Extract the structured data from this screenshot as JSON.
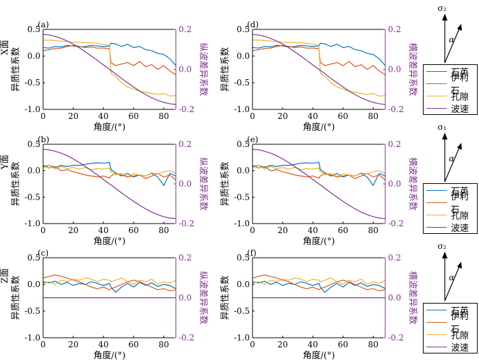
{
  "colors": {
    "quartz": "#0072bd",
    "illite": "#d95319",
    "pore": "#edb120",
    "velocity": "#7e2f8e",
    "axis": "#000000",
    "right_axis": "#7e2f8e"
  },
  "legend": {
    "items": [
      "石英",
      "伊利石",
      "孔隙",
      "波速"
    ]
  },
  "stress_labels": {
    "row1": "σ₂",
    "row2": "σ₁",
    "row3": "σ₂",
    "angle": "α"
  },
  "chart_data": [
    {
      "id": "a",
      "type": "line",
      "panel_label": "(a)",
      "title": "",
      "face_label": "X面",
      "ylabel": "异质性系数",
      "ylabel_right": "纵波差异系数",
      "xlabel": "角度/(°)",
      "xlim": [
        0,
        88
      ],
      "xticks": [
        0,
        20,
        40,
        60,
        80
      ],
      "ylim": [
        -1,
        0.5
      ],
      "yticks": [
        "-1.0",
        "-0.5",
        "0.0",
        "0.5"
      ],
      "ylim_right": [
        -0.2,
        0.2
      ],
      "yticks_right": [
        "-0.2",
        "0.0",
        "0.2"
      ],
      "x": [
        0,
        4,
        8,
        12,
        16,
        20,
        24,
        28,
        32,
        36,
        40,
        44,
        45,
        48,
        52,
        56,
        60,
        64,
        68,
        72,
        76,
        80,
        84,
        88
      ],
      "series": [
        {
          "name": "石英",
          "axis": "left",
          "values": [
            0.16,
            0.15,
            0.18,
            0.17,
            0.2,
            0.19,
            0.17,
            0.18,
            0.2,
            0.19,
            0.18,
            0.19,
            0.24,
            0.23,
            0.18,
            0.22,
            0.16,
            0.18,
            0.12,
            0.1,
            0.05,
            0.03,
            -0.05,
            -0.18
          ]
        },
        {
          "name": "伊利石",
          "axis": "left",
          "values": [
            0.1,
            0.12,
            0.14,
            0.15,
            0.18,
            0.2,
            0.18,
            0.16,
            0.17,
            0.15,
            0.15,
            0.14,
            -0.12,
            -0.18,
            -0.15,
            -0.12,
            -0.18,
            -0.1,
            -0.2,
            -0.16,
            -0.25,
            -0.18,
            -0.28,
            -0.35
          ]
        },
        {
          "name": "孔隙",
          "axis": "left",
          "values": [
            0.3,
            0.3,
            0.29,
            0.28,
            0.27,
            0.26,
            0.26,
            0.25,
            0.25,
            0.24,
            0.22,
            0.2,
            -0.32,
            -0.38,
            -0.5,
            -0.58,
            -0.62,
            -0.66,
            -0.68,
            -0.7,
            -0.72,
            -0.7,
            -0.75,
            -0.74
          ]
        },
        {
          "name": "波速",
          "axis": "right",
          "values": [
            0.175,
            0.172,
            0.165,
            0.155,
            0.142,
            0.126,
            0.108,
            0.088,
            0.067,
            0.045,
            0.022,
            0.0,
            -0.005,
            -0.022,
            -0.045,
            -0.067,
            -0.088,
            -0.108,
            -0.126,
            -0.142,
            -0.155,
            -0.165,
            -0.172,
            -0.175
          ]
        }
      ]
    },
    {
      "id": "d",
      "type": "line",
      "panel_label": "(d)",
      "title": "",
      "face_label": "",
      "ylabel": "异质性系数",
      "ylabel_right": "横波差异系数",
      "xlabel": "角度/(°)",
      "xlim": [
        0,
        88
      ],
      "xticks": [
        0,
        20,
        40,
        60,
        80
      ],
      "ylim": [
        -1,
        0.5
      ],
      "yticks": [
        "-1.0",
        "-0.5",
        "0.0",
        "0.5"
      ],
      "ylim_right": [
        -0.2,
        0.2
      ],
      "yticks_right": [
        "-0.2",
        "0.0",
        "0.2"
      ],
      "x": [
        0,
        4,
        8,
        12,
        16,
        20,
        24,
        28,
        32,
        36,
        40,
        44,
        45,
        48,
        52,
        56,
        60,
        64,
        68,
        72,
        76,
        80,
        84,
        88
      ],
      "series": [
        {
          "name": "石英",
          "axis": "left",
          "values": [
            0.16,
            0.15,
            0.18,
            0.17,
            0.2,
            0.19,
            0.17,
            0.18,
            0.2,
            0.19,
            0.18,
            0.19,
            0.24,
            0.23,
            0.18,
            0.22,
            0.16,
            0.18,
            0.12,
            0.1,
            0.05,
            0.03,
            -0.05,
            -0.18
          ]
        },
        {
          "name": "伊利石",
          "axis": "left",
          "values": [
            0.1,
            0.12,
            0.14,
            0.15,
            0.18,
            0.2,
            0.18,
            0.16,
            0.17,
            0.15,
            0.15,
            0.14,
            -0.12,
            -0.18,
            -0.15,
            -0.12,
            -0.18,
            -0.1,
            -0.2,
            -0.16,
            -0.25,
            -0.18,
            -0.28,
            -0.35
          ]
        },
        {
          "name": "孔隙",
          "axis": "left",
          "values": [
            0.3,
            0.3,
            0.29,
            0.28,
            0.27,
            0.26,
            0.26,
            0.25,
            0.25,
            0.24,
            0.22,
            0.2,
            -0.32,
            -0.38,
            -0.5,
            -0.58,
            -0.62,
            -0.66,
            -0.68,
            -0.7,
            -0.72,
            -0.7,
            -0.75,
            -0.74
          ]
        },
        {
          "name": "波速",
          "axis": "right",
          "values": [
            0.175,
            0.172,
            0.165,
            0.155,
            0.142,
            0.126,
            0.108,
            0.088,
            0.067,
            0.045,
            0.022,
            0.0,
            -0.005,
            -0.022,
            -0.045,
            -0.067,
            -0.088,
            -0.108,
            -0.126,
            -0.142,
            -0.155,
            -0.165,
            -0.172,
            -0.175
          ]
        }
      ]
    },
    {
      "id": "b",
      "type": "line",
      "panel_label": "(b)",
      "title": "",
      "face_label": "Y面",
      "ylabel": "异质性系数",
      "ylabel_right": "纵波差异系数",
      "xlabel": "角度/(°)",
      "xlim": [
        0,
        88
      ],
      "xticks": [
        0,
        20,
        40,
        60,
        80
      ],
      "ylim": [
        -1,
        0.5
      ],
      "yticks": [
        "-1.0",
        "-0.5",
        "0.0",
        "0.5"
      ],
      "ylim_right": [
        -0.2,
        0.2
      ],
      "yticks_right": [
        "-0.2",
        "0.0",
        "0.2"
      ],
      "x": [
        0,
        4,
        8,
        12,
        16,
        20,
        24,
        28,
        32,
        36,
        40,
        44,
        45,
        48,
        52,
        56,
        60,
        64,
        68,
        72,
        76,
        80,
        84,
        88
      ],
      "series": [
        {
          "name": "石英",
          "axis": "left",
          "values": [
            0.08,
            0.1,
            0.06,
            0.1,
            0.08,
            0.1,
            0.1,
            0.12,
            0.14,
            0.15,
            0.14,
            0.16,
            0.02,
            -0.04,
            -0.1,
            -0.05,
            -0.12,
            -0.08,
            -0.1,
            -0.05,
            -0.12,
            -0.28,
            -0.05,
            -0.1
          ]
        },
        {
          "name": "伊利石",
          "axis": "left",
          "values": [
            0.1,
            0.05,
            0.08,
            0.0,
            0.02,
            -0.02,
            -0.05,
            -0.08,
            -0.1,
            -0.12,
            -0.1,
            -0.14,
            -0.1,
            -0.05,
            -0.08,
            -0.12,
            -0.1,
            -0.08,
            -0.15,
            -0.1,
            -0.05,
            -0.12,
            -0.08,
            -0.18
          ]
        },
        {
          "name": "孔隙",
          "axis": "left",
          "values": [
            0.05,
            0.1,
            0.03,
            0.08,
            0.04,
            0.06,
            0.03,
            0.06,
            0.02,
            0.04,
            0.03,
            0.05,
            -0.02,
            -0.08,
            -0.05,
            -0.1,
            -0.06,
            -0.08,
            -0.1,
            -0.04,
            -0.06,
            -0.02,
            0.0,
            -0.05
          ]
        },
        {
          "name": "波速",
          "axis": "right",
          "values": [
            0.175,
            0.172,
            0.165,
            0.155,
            0.142,
            0.126,
            0.108,
            0.088,
            0.067,
            0.045,
            0.022,
            0.0,
            -0.005,
            -0.022,
            -0.045,
            -0.067,
            -0.088,
            -0.108,
            -0.126,
            -0.142,
            -0.155,
            -0.165,
            -0.172,
            -0.175
          ]
        }
      ]
    },
    {
      "id": "e",
      "type": "line",
      "panel_label": "(e)",
      "title": "",
      "face_label": "",
      "ylabel": "异质性系数",
      "ylabel_right": "横波差异系数",
      "xlabel": "角度/(°)",
      "xlim": [
        0,
        88
      ],
      "xticks": [
        0,
        20,
        40,
        60,
        80
      ],
      "ylim": [
        -1,
        0.5
      ],
      "yticks": [
        "-1.0",
        "-0.5",
        "0.0",
        "0.5"
      ],
      "ylim_right": [
        -0.2,
        0.2
      ],
      "yticks_right": [
        "-0.2",
        "0.0",
        "0.2"
      ],
      "x": [
        0,
        4,
        8,
        12,
        16,
        20,
        24,
        28,
        32,
        36,
        40,
        44,
        45,
        48,
        52,
        56,
        60,
        64,
        68,
        72,
        76,
        80,
        84,
        88
      ],
      "series": [
        {
          "name": "石英",
          "axis": "left",
          "values": [
            0.08,
            0.1,
            0.06,
            0.1,
            0.08,
            0.1,
            0.1,
            0.12,
            0.14,
            0.15,
            0.14,
            0.16,
            0.02,
            -0.04,
            -0.1,
            -0.05,
            -0.12,
            -0.08,
            -0.1,
            -0.05,
            -0.12,
            -0.28,
            -0.05,
            -0.1
          ]
        },
        {
          "name": "伊利石",
          "axis": "left",
          "values": [
            0.1,
            0.05,
            0.08,
            0.0,
            0.02,
            -0.02,
            -0.05,
            -0.08,
            -0.1,
            -0.12,
            -0.1,
            -0.14,
            -0.1,
            -0.05,
            -0.08,
            -0.12,
            -0.1,
            -0.08,
            -0.15,
            -0.1,
            -0.05,
            -0.12,
            -0.08,
            -0.18
          ]
        },
        {
          "name": "孔隙",
          "axis": "left",
          "values": [
            0.05,
            0.1,
            0.03,
            0.08,
            0.04,
            0.06,
            0.03,
            0.06,
            0.02,
            0.04,
            0.03,
            0.05,
            -0.02,
            -0.08,
            -0.05,
            -0.1,
            -0.06,
            -0.08,
            -0.1,
            -0.04,
            -0.06,
            -0.02,
            0.0,
            -0.05
          ]
        },
        {
          "name": "波速",
          "axis": "right",
          "values": [
            0.175,
            0.172,
            0.165,
            0.155,
            0.142,
            0.126,
            0.108,
            0.088,
            0.067,
            0.045,
            0.022,
            0.0,
            -0.005,
            -0.022,
            -0.045,
            -0.067,
            -0.088,
            -0.108,
            -0.126,
            -0.142,
            -0.155,
            -0.165,
            -0.172,
            -0.175
          ]
        }
      ]
    },
    {
      "id": "c",
      "type": "line",
      "panel_label": "(c)",
      "title": "",
      "face_label": "Z面",
      "ylabel": "异质性系数",
      "ylabel_right": "纵波差异系数",
      "xlabel": "角度/(°)",
      "xlim": [
        0,
        88
      ],
      "xticks": [
        0,
        20,
        40,
        60,
        80
      ],
      "ylim": [
        -1,
        0.5
      ],
      "yticks": [
        "-1.0",
        "-0.5",
        "0.0",
        "0.5"
      ],
      "ylim_right": [
        -0.2,
        0.2
      ],
      "yticks_right": [
        "-0.2",
        "0.0",
        "0.2"
      ],
      "x": [
        0,
        4,
        8,
        12,
        16,
        20,
        24,
        28,
        32,
        36,
        40,
        44,
        45,
        48,
        52,
        56,
        60,
        64,
        68,
        72,
        76,
        80,
        84,
        88
      ],
      "series": [
        {
          "name": "石英",
          "axis": "left",
          "values": [
            0.05,
            0.03,
            0.06,
            0.0,
            0.04,
            -0.02,
            0.02,
            0.0,
            0.05,
            0.02,
            -0.02,
            0.02,
            -0.05,
            -0.15,
            -0.05,
            0.02,
            -0.05,
            0.04,
            -0.02,
            0.03,
            -0.04,
            0.0,
            -0.02,
            -0.08
          ]
        },
        {
          "name": "伊利石",
          "axis": "left",
          "values": [
            0.12,
            0.15,
            0.18,
            0.15,
            0.12,
            0.08,
            0.05,
            0.0,
            -0.05,
            -0.08,
            -0.05,
            -0.1,
            -0.08,
            -0.05,
            0.0,
            0.05,
            0.08,
            0.05,
            0.0,
            -0.05,
            -0.1,
            -0.08,
            -0.12,
            -0.1
          ]
        },
        {
          "name": "孔隙",
          "axis": "left",
          "values": [
            0.02,
            0.05,
            0.0,
            0.08,
            0.05,
            0.1,
            0.08,
            0.12,
            0.1,
            0.05,
            0.1,
            0.08,
            0.05,
            0.08,
            0.12,
            0.05,
            0.0,
            0.08,
            0.05,
            0.1,
            0.0,
            0.05,
            0.02,
            0.08
          ]
        },
        {
          "name": "波速",
          "axis": "right",
          "values": [
            0.0,
            0.0,
            0.0,
            0.0,
            0.0,
            0.0,
            0.0,
            0.0,
            0.0,
            0.0,
            0.0,
            0.0,
            0.0,
            0.0,
            0.0,
            0.0,
            0.0,
            0.0,
            0.0,
            0.0,
            0.0,
            0.0,
            0.0,
            0.0
          ]
        }
      ]
    },
    {
      "id": "f",
      "type": "line",
      "panel_label": "(f)",
      "title": "",
      "face_label": "",
      "ylabel": "异质性系数",
      "ylabel_right": "横波差异系数",
      "xlabel": "角度/(°)",
      "xlim": [
        0,
        88
      ],
      "xticks": [
        0,
        20,
        40,
        60,
        80
      ],
      "ylim": [
        -1,
        0.5
      ],
      "yticks": [
        "-1.0",
        "-0.5",
        "0.0",
        "0.5"
      ],
      "ylim_right": [
        -0.2,
        0.2
      ],
      "yticks_right": [
        "-0.2",
        "0.0",
        "0.2"
      ],
      "x": [
        0,
        4,
        8,
        12,
        16,
        20,
        24,
        28,
        32,
        36,
        40,
        44,
        45,
        48,
        52,
        56,
        60,
        64,
        68,
        72,
        76,
        80,
        84,
        88
      ],
      "series": [
        {
          "name": "石英",
          "axis": "left",
          "values": [
            0.05,
            0.03,
            0.06,
            0.0,
            0.04,
            -0.02,
            0.02,
            0.0,
            0.05,
            0.02,
            -0.02,
            0.02,
            -0.05,
            -0.15,
            -0.05,
            0.02,
            -0.05,
            0.04,
            -0.02,
            0.03,
            -0.04,
            0.0,
            -0.02,
            -0.08
          ]
        },
        {
          "name": "伊利石",
          "axis": "left",
          "values": [
            0.12,
            0.15,
            0.18,
            0.15,
            0.12,
            0.08,
            0.05,
            0.0,
            -0.05,
            -0.08,
            -0.05,
            -0.1,
            -0.08,
            -0.05,
            0.0,
            0.05,
            0.08,
            0.05,
            0.0,
            -0.05,
            -0.1,
            -0.08,
            -0.12,
            -0.1
          ]
        },
        {
          "name": "孔隙",
          "axis": "left",
          "values": [
            0.02,
            0.05,
            0.0,
            0.08,
            0.05,
            0.1,
            0.08,
            0.12,
            0.1,
            0.05,
            0.1,
            0.08,
            0.05,
            0.08,
            0.12,
            0.05,
            0.0,
            0.08,
            0.05,
            0.1,
            0.0,
            0.05,
            0.02,
            0.08
          ]
        },
        {
          "name": "波速",
          "axis": "right",
          "values": [
            0.0,
            0.0,
            0.0,
            0.0,
            0.0,
            0.0,
            0.0,
            0.0,
            0.0,
            0.0,
            0.0,
            0.0,
            0.0,
            0.0,
            0.0,
            0.0,
            0.0,
            0.0,
            0.0,
            0.0,
            0.0,
            0.0,
            0.0,
            0.0
          ]
        }
      ]
    }
  ]
}
